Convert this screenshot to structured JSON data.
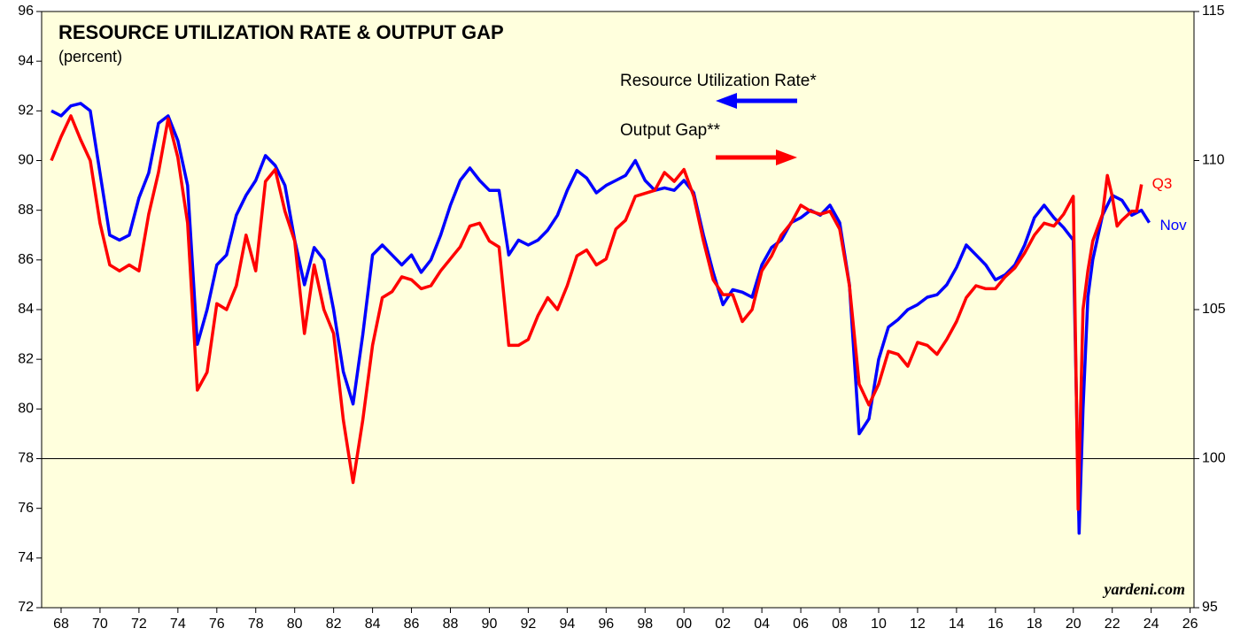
{
  "chart_data": {
    "type": "line",
    "title": "RESOURCE UTILIZATION RATE & OUTPUT GAP",
    "subtitle": "(percent)",
    "source": "yardeni.com",
    "xlim": [
      1967,
      2026.2
    ],
    "xticks": [
      {
        "value": 1968,
        "label": "68"
      },
      {
        "value": 1970,
        "label": "70"
      },
      {
        "value": 1972,
        "label": "72"
      },
      {
        "value": 1974,
        "label": "74"
      },
      {
        "value": 1976,
        "label": "76"
      },
      {
        "value": 1978,
        "label": "78"
      },
      {
        "value": 1980,
        "label": "80"
      },
      {
        "value": 1982,
        "label": "82"
      },
      {
        "value": 1984,
        "label": "84"
      },
      {
        "value": 1986,
        "label": "86"
      },
      {
        "value": 1988,
        "label": "88"
      },
      {
        "value": 1990,
        "label": "90"
      },
      {
        "value": 1992,
        "label": "92"
      },
      {
        "value": 1994,
        "label": "94"
      },
      {
        "value": 1996,
        "label": "96"
      },
      {
        "value": 1998,
        "label": "98"
      },
      {
        "value": 2000,
        "label": "00"
      },
      {
        "value": 2002,
        "label": "02"
      },
      {
        "value": 2004,
        "label": "04"
      },
      {
        "value": 2006,
        "label": "06"
      },
      {
        "value": 2008,
        "label": "08"
      },
      {
        "value": 2010,
        "label": "10"
      },
      {
        "value": 2012,
        "label": "12"
      },
      {
        "value": 2014,
        "label": "14"
      },
      {
        "value": 2016,
        "label": "16"
      },
      {
        "value": 2018,
        "label": "18"
      },
      {
        "value": 2020,
        "label": "20"
      },
      {
        "value": 2022,
        "label": "22"
      },
      {
        "value": 2024,
        "label": "24"
      },
      {
        "value": 2026,
        "label": "26"
      }
    ],
    "ylim": [
      72,
      96
    ],
    "yticks": [
      72,
      74,
      76,
      78,
      80,
      82,
      84,
      86,
      88,
      90,
      92,
      94,
      96
    ],
    "y2lim": [
      95,
      115
    ],
    "y2ticks": [
      95,
      100,
      105,
      110,
      115
    ],
    "hline": 78,
    "series": [
      {
        "name": "Resource Utilization Rate*",
        "color": "#0000ff",
        "end_label": "Nov",
        "x": [
          1967.5,
          1968,
          1968.5,
          1969,
          1969.5,
          1970,
          1970.5,
          1971,
          1971.5,
          1972,
          1972.5,
          1973,
          1973.5,
          1974,
          1974.5,
          1975,
          1975.5,
          1976,
          1976.5,
          1977,
          1977.5,
          1978,
          1978.5,
          1979,
          1979.5,
          1980,
          1980.5,
          1981,
          1981.5,
          1982,
          1982.5,
          1983,
          1983.5,
          1984,
          1984.5,
          1985,
          1985.5,
          1986,
          1986.5,
          1987,
          1987.5,
          1988,
          1988.5,
          1989,
          1989.5,
          1990,
          1990.5,
          1991,
          1991.5,
          1992,
          1992.5,
          1993,
          1993.5,
          1994,
          1994.5,
          1995,
          1995.5,
          1996,
          1996.5,
          1997,
          1997.5,
          1998,
          1998.5,
          1999,
          1999.5,
          2000,
          2000.5,
          2001,
          2001.5,
          2002,
          2002.5,
          2003,
          2003.5,
          2004,
          2004.5,
          2005,
          2005.5,
          2006,
          2006.5,
          2007,
          2007.5,
          2008,
          2008.5,
          2009,
          2009.5,
          2010,
          2010.5,
          2011,
          2011.5,
          2012,
          2012.5,
          2013,
          2013.5,
          2014,
          2014.5,
          2015,
          2015.5,
          2016,
          2016.5,
          2017,
          2017.5,
          2018,
          2018.5,
          2019,
          2019.5,
          2020,
          2020.3,
          2020.5,
          2020.75,
          2021,
          2021.5,
          2022,
          2022.5,
          2023,
          2023.5,
          2023.9
        ],
        "values": [
          92,
          91.8,
          92.2,
          92.3,
          92,
          89.5,
          87,
          86.8,
          87,
          88.5,
          89.5,
          91.5,
          91.8,
          90.8,
          89,
          82.6,
          84,
          85.8,
          86.2,
          87.8,
          88.6,
          89.2,
          90.2,
          89.8,
          89,
          86.8,
          85,
          86.5,
          86,
          84,
          81.5,
          80.2,
          83,
          86.2,
          86.6,
          86.2,
          85.8,
          86.2,
          85.5,
          86,
          87,
          88.2,
          89.2,
          89.7,
          89.2,
          88.8,
          88.8,
          86.2,
          86.8,
          86.6,
          86.8,
          87.2,
          87.8,
          88.8,
          89.6,
          89.3,
          88.7,
          89,
          89.2,
          89.4,
          90,
          89.2,
          88.8,
          88.9,
          88.8,
          89.2,
          88.7,
          87,
          85.5,
          84.2,
          84.8,
          84.7,
          84.5,
          85.8,
          86.5,
          86.8,
          87.5,
          87.7,
          88,
          87.8,
          88.2,
          87.5,
          85,
          79,
          79.6,
          82,
          83.3,
          83.6,
          84,
          84.2,
          84.5,
          84.6,
          85,
          85.7,
          86.6,
          86.2,
          85.8,
          85.2,
          85.4,
          85.8,
          86.6,
          87.7,
          88.2,
          87.7,
          87.3,
          86.8,
          75,
          80,
          84.5,
          86,
          87.8,
          88.6,
          88.4,
          87.8,
          88,
          87.5
        ]
      },
      {
        "name": "Output Gap**",
        "color": "#ff0000",
        "axis": "y2",
        "end_label": "Q3",
        "x": [
          1967.5,
          1968,
          1968.5,
          1969,
          1969.5,
          1970,
          1970.5,
          1971,
          1971.5,
          1972,
          1972.5,
          1973,
          1973.5,
          1974,
          1974.5,
          1975,
          1975.5,
          1976,
          1976.5,
          1977,
          1977.5,
          1978,
          1978.5,
          1979,
          1979.5,
          1980,
          1980.5,
          1981,
          1981.5,
          1982,
          1982.5,
          1983,
          1983.5,
          1984,
          1984.5,
          1985,
          1985.5,
          1986,
          1986.5,
          1987,
          1987.5,
          1988,
          1988.5,
          1989,
          1989.5,
          1990,
          1990.5,
          1991,
          1991.5,
          1992,
          1992.5,
          1993,
          1993.5,
          1994,
          1994.5,
          1995,
          1995.5,
          1996,
          1996.5,
          1997,
          1997.5,
          1998,
          1998.5,
          1999,
          1999.5,
          2000,
          2000.5,
          2001,
          2001.5,
          2002,
          2002.5,
          2003,
          2003.5,
          2004,
          2004.5,
          2005,
          2005.5,
          2006,
          2006.5,
          2007,
          2007.5,
          2008,
          2008.5,
          2009,
          2009.5,
          2010,
          2010.5,
          2011,
          2011.5,
          2012,
          2012.5,
          2013,
          2013.5,
          2014,
          2014.5,
          2015,
          2015.5,
          2016,
          2016.5,
          2017,
          2017.5,
          2018,
          2018.5,
          2019,
          2019.5,
          2020,
          2020.25,
          2020.5,
          2020.75,
          2021,
          2021.5,
          2021.75,
          2022,
          2022.25,
          2022.5,
          2023,
          2023.25,
          2023.5
        ],
        "values": [
          110.0,
          110.8,
          111.5,
          110.7,
          110.0,
          107.9,
          106.5,
          106.3,
          106.5,
          106.3,
          108.2,
          109.6,
          111.4,
          110.1,
          107.9,
          102.3,
          102.9,
          105.2,
          105.0,
          105.8,
          107.5,
          106.3,
          109.3,
          109.7,
          108.3,
          107.3,
          104.2,
          106.5,
          105.0,
          104.2,
          101.3,
          99.2,
          101.3,
          103.8,
          105.4,
          105.6,
          106.1,
          106.0,
          105.7,
          105.8,
          106.3,
          106.7,
          107.1,
          107.8,
          107.9,
          107.3,
          107.1,
          103.8,
          103.8,
          104.0,
          104.8,
          105.4,
          105.0,
          105.8,
          106.8,
          107.0,
          106.5,
          106.7,
          107.7,
          108.0,
          108.8,
          108.9,
          109.0,
          109.6,
          109.3,
          109.7,
          108.8,
          107.3,
          106.0,
          105.5,
          105.5,
          104.6,
          105.0,
          106.3,
          106.8,
          107.5,
          107.9,
          108.5,
          108.3,
          108.2,
          108.3,
          107.7,
          105.8,
          102.5,
          101.8,
          102.5,
          103.6,
          103.5,
          103.1,
          103.9,
          103.8,
          103.5,
          104.0,
          104.6,
          105.4,
          105.8,
          105.7,
          105.7,
          106.1,
          106.4,
          106.9,
          107.5,
          107.9,
          107.8,
          108.2,
          108.8,
          98.3,
          105.0,
          106.3,
          107.3,
          108.2,
          109.5,
          108.8,
          107.8,
          108.0,
          108.3,
          108.3,
          109.2
        ]
      }
    ]
  }
}
